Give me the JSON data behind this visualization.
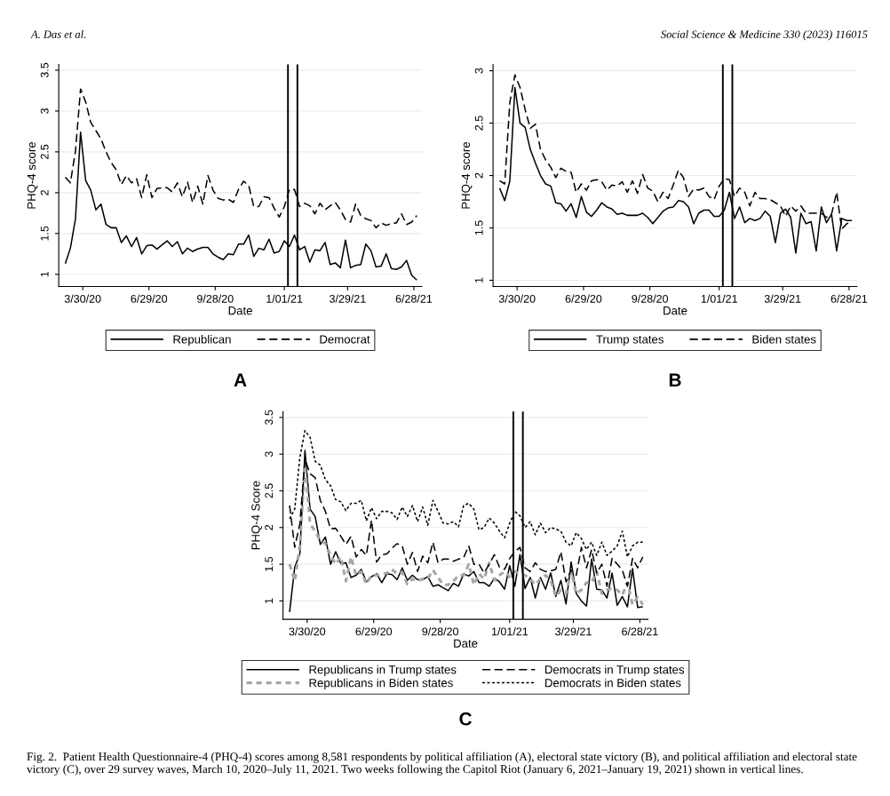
{
  "chart_data": [
    {
      "type": "line",
      "xlabel": "Date",
      "ylabel": "PHQ-4 score",
      "x": [
        "2020-03-06",
        "2020-03-13",
        "2020-03-20",
        "2020-03-27",
        "2020-04-03",
        "2020-04-10",
        "2020-04-17",
        "2020-04-24",
        "2020-05-01",
        "2020-05-08",
        "2020-05-15",
        "2020-05-22",
        "2020-05-29",
        "2020-06-05",
        "2020-06-12",
        "2020-06-19",
        "2020-06-26",
        "2020-07-03",
        "2020-07-10",
        "2020-07-17",
        "2020-07-24",
        "2020-07-31",
        "2020-08-07",
        "2020-08-14",
        "2020-08-21",
        "2020-08-28",
        "2020-09-04",
        "2020-09-11",
        "2020-09-18",
        "2020-09-25",
        "2020-10-02",
        "2020-10-09",
        "2020-10-16",
        "2020-10-23",
        "2020-10-30",
        "2020-11-06",
        "2020-11-13",
        "2020-11-20",
        "2020-11-27",
        "2020-12-04",
        "2020-12-11",
        "2020-12-18",
        "2020-12-25",
        "2021-01-01",
        "2021-01-08",
        "2021-01-15",
        "2021-01-22",
        "2021-01-29",
        "2021-02-05",
        "2021-02-12",
        "2021-02-19",
        "2021-02-26",
        "2021-03-05",
        "2021-03-12",
        "2021-03-19",
        "2021-03-26",
        "2021-04-02",
        "2021-04-09",
        "2021-04-16",
        "2021-04-23",
        "2021-04-30",
        "2021-05-07",
        "2021-05-14",
        "2021-05-21",
        "2021-05-28",
        "2021-06-04",
        "2021-06-11",
        "2021-06-18",
        "2021-06-25",
        "2021-07-02"
      ],
      "series": [
        {
          "name": "Republican",
          "color": "#000000",
          "line_style": "solid",
          "values": [
            1.13,
            1.32,
            1.68,
            2.74,
            2.15,
            2.03,
            1.79,
            1.86,
            1.61,
            1.57,
            1.57,
            1.39,
            1.47,
            1.34,
            1.45,
            1.25,
            1.35,
            1.36,
            1.31,
            1.36,
            1.41,
            1.34,
            1.4,
            1.25,
            1.32,
            1.28,
            1.31,
            1.33,
            1.33,
            1.25,
            1.21,
            1.18,
            1.25,
            1.24,
            1.37,
            1.37,
            1.48,
            1.22,
            1.32,
            1.3,
            1.43,
            1.26,
            1.28,
            1.41,
            1.34,
            1.48,
            1.3,
            1.34,
            1.15,
            1.3,
            1.29,
            1.39,
            1.12,
            1.14,
            1.08,
            1.42,
            1.08,
            1.11,
            1.12,
            1.37,
            1.29,
            1.09,
            1.1,
            1.25,
            1.07,
            1.06,
            1.09,
            1.17,
            0.99,
            0.93
          ]
        },
        {
          "name": "Democrat",
          "color": "#000000",
          "line_style": "dashed",
          "values": [
            2.19,
            2.12,
            2.51,
            3.27,
            3.11,
            2.86,
            2.76,
            2.66,
            2.5,
            2.37,
            2.28,
            2.1,
            2.21,
            2.12,
            2.17,
            1.94,
            2.22,
            1.94,
            2.05,
            2.06,
            2.06,
            2.01,
            2.12,
            1.95,
            2.13,
            1.88,
            2.08,
            1.86,
            2.21,
            2.03,
            1.93,
            1.91,
            1.92,
            1.88,
            2.04,
            2.14,
            2.09,
            1.83,
            1.83,
            1.95,
            1.94,
            1.81,
            1.7,
            1.83,
            2.04,
            2.04,
            1.83,
            1.87,
            1.84,
            1.74,
            1.87,
            1.79,
            1.84,
            1.88,
            1.79,
            1.67,
            1.64,
            1.86,
            1.72,
            1.68,
            1.66,
            1.57,
            1.63,
            1.6,
            1.62,
            1.63,
            1.74,
            1.61,
            1.64,
            1.72
          ]
        }
      ],
      "xlim": [
        "2020-02-26",
        "2021-07-09"
      ],
      "ylim": [
        0.85,
        3.57
      ],
      "xticks": [
        {
          "value": "2020-03-30",
          "label": "3/30/20"
        },
        {
          "value": "2020-06-29",
          "label": "6/29/20"
        },
        {
          "value": "2020-09-28",
          "label": "9/28/20"
        },
        {
          "value": "2021-01-01",
          "label": "1/01/21"
        },
        {
          "value": "2021-03-29",
          "label": "3/29/21"
        },
        {
          "value": "2021-06-28",
          "label": "6/28/21"
        }
      ],
      "yticks": [
        1,
        1.5,
        2,
        2.5,
        3,
        3.5
      ],
      "grid": "y",
      "legend": "bottom",
      "ref_lines": [
        {
          "axis": "x",
          "value": "2021-01-06",
          "color": "#000000"
        },
        {
          "axis": "x",
          "value": "2021-01-19",
          "color": "#000000"
        }
      ],
      "annotations": [
        "A",
        "A. Das et al."
      ]
    },
    {
      "type": "line",
      "xlabel": "Date",
      "ylabel": "PHQ-4 score",
      "x": [
        "2020-03-06",
        "2020-03-13",
        "2020-03-20",
        "2020-03-27",
        "2020-04-03",
        "2020-04-10",
        "2020-04-17",
        "2020-04-24",
        "2020-05-01",
        "2020-05-08",
        "2020-05-15",
        "2020-05-22",
        "2020-05-29",
        "2020-06-05",
        "2020-06-12",
        "2020-06-19",
        "2020-06-26",
        "2020-07-03",
        "2020-07-10",
        "2020-07-17",
        "2020-07-24",
        "2020-07-31",
        "2020-08-07",
        "2020-08-14",
        "2020-08-21",
        "2020-08-28",
        "2020-09-04",
        "2020-09-11",
        "2020-09-18",
        "2020-09-25",
        "2020-10-02",
        "2020-10-09",
        "2020-10-16",
        "2020-10-23",
        "2020-10-30",
        "2020-11-06",
        "2020-11-13",
        "2020-11-20",
        "2020-11-27",
        "2020-12-04",
        "2020-12-11",
        "2020-12-18",
        "2020-12-25",
        "2021-01-01",
        "2021-01-08",
        "2021-01-15",
        "2021-01-22",
        "2021-01-29",
        "2021-02-05",
        "2021-02-12",
        "2021-02-19",
        "2021-02-26",
        "2021-03-05",
        "2021-03-12",
        "2021-03-19",
        "2021-03-26",
        "2021-04-02",
        "2021-04-09",
        "2021-04-16",
        "2021-04-23",
        "2021-04-30",
        "2021-05-07",
        "2021-05-14",
        "2021-05-21",
        "2021-05-28",
        "2021-06-04",
        "2021-06-11",
        "2021-06-18",
        "2021-06-25",
        "2021-07-02"
      ],
      "series": [
        {
          "name": "Trump states",
          "color": "#000000",
          "line_style": "solid",
          "values": [
            1.88,
            1.76,
            1.95,
            2.84,
            2.5,
            2.46,
            2.25,
            2.12,
            2.0,
            1.92,
            1.9,
            1.74,
            1.73,
            1.66,
            1.73,
            1.6,
            1.8,
            1.65,
            1.61,
            1.67,
            1.74,
            1.7,
            1.68,
            1.63,
            1.64,
            1.62,
            1.62,
            1.62,
            1.64,
            1.6,
            1.54,
            1.6,
            1.66,
            1.69,
            1.7,
            1.76,
            1.75,
            1.7,
            1.54,
            1.64,
            1.67,
            1.67,
            1.61,
            1.61,
            1.67,
            1.84,
            1.59,
            1.7,
            1.55,
            1.59,
            1.57,
            1.59,
            1.66,
            1.61,
            1.36,
            1.64,
            1.68,
            1.6,
            1.26,
            1.64,
            1.54,
            1.56,
            1.28,
            1.7,
            1.55,
            1.63,
            1.28,
            1.59,
            1.57,
            1.57
          ]
        },
        {
          "name": "Biden states",
          "color": "#000000",
          "line_style": "dashed",
          "values": [
            1.95,
            1.92,
            2.7,
            2.96,
            2.84,
            2.63,
            2.45,
            2.49,
            2.25,
            2.15,
            2.08,
            1.98,
            2.07,
            2.04,
            2.03,
            1.84,
            1.92,
            1.86,
            1.95,
            1.96,
            1.94,
            1.86,
            1.91,
            1.9,
            1.94,
            1.84,
            1.95,
            1.83,
            2.01,
            1.88,
            1.85,
            1.75,
            1.84,
            1.78,
            1.91,
            2.05,
            1.98,
            1.8,
            1.87,
            1.86,
            1.88,
            1.8,
            1.77,
            1.9,
            1.97,
            1.96,
            1.8,
            1.88,
            1.84,
            1.71,
            1.84,
            1.78,
            1.78,
            1.77,
            1.74,
            1.71,
            1.61,
            1.71,
            1.66,
            1.71,
            1.64,
            1.64,
            1.64,
            1.64,
            1.6,
            1.63,
            1.84,
            1.49,
            1.54,
            1.56
          ]
        }
      ],
      "xlim": [
        "2020-02-26",
        "2021-07-09"
      ],
      "ylim": [
        0.94,
        3.06
      ],
      "xticks": [
        {
          "value": "2020-03-30",
          "label": "3/30/20"
        },
        {
          "value": "2020-06-29",
          "label": "6/29/20"
        },
        {
          "value": "2020-09-28",
          "label": "9/28/20"
        },
        {
          "value": "2021-01-01",
          "label": "1/01/21"
        },
        {
          "value": "2021-03-29",
          "label": "3/29/21"
        },
        {
          "value": "2021-06-28",
          "label": "6/28/21"
        }
      ],
      "yticks": [
        1,
        1.5,
        2,
        2.5,
        3
      ],
      "grid": "y",
      "legend": "bottom",
      "ref_lines": [
        {
          "axis": "x",
          "value": "2021-01-06",
          "color": "#000000"
        },
        {
          "axis": "x",
          "value": "2021-01-19",
          "color": "#000000"
        }
      ],
      "annotations": [
        "B",
        "Social Science & Medicine 330 (2023) 116015"
      ]
    },
    {
      "type": "line",
      "xlabel": "Date",
      "ylabel": "PHQ-4 Score",
      "x": [
        "2020-03-06",
        "2020-03-13",
        "2020-03-20",
        "2020-03-27",
        "2020-04-03",
        "2020-04-10",
        "2020-04-17",
        "2020-04-24",
        "2020-05-01",
        "2020-05-08",
        "2020-05-15",
        "2020-05-22",
        "2020-05-29",
        "2020-06-05",
        "2020-06-12",
        "2020-06-19",
        "2020-06-26",
        "2020-07-03",
        "2020-07-10",
        "2020-07-17",
        "2020-07-24",
        "2020-07-31",
        "2020-08-07",
        "2020-08-14",
        "2020-08-21",
        "2020-08-28",
        "2020-09-04",
        "2020-09-11",
        "2020-09-18",
        "2020-09-25",
        "2020-10-02",
        "2020-10-09",
        "2020-10-16",
        "2020-10-23",
        "2020-10-30",
        "2020-11-06",
        "2020-11-13",
        "2020-11-20",
        "2020-11-27",
        "2020-12-04",
        "2020-12-11",
        "2020-12-18",
        "2020-12-25",
        "2021-01-01",
        "2021-01-08",
        "2021-01-15",
        "2021-01-22",
        "2021-01-29",
        "2021-02-05",
        "2021-02-12",
        "2021-02-19",
        "2021-02-26",
        "2021-03-05",
        "2021-03-12",
        "2021-03-19",
        "2021-03-26",
        "2021-04-02",
        "2021-04-09",
        "2021-04-16",
        "2021-04-23",
        "2021-04-30",
        "2021-05-07",
        "2021-05-14",
        "2021-05-21",
        "2021-05-28",
        "2021-06-04",
        "2021-06-11",
        "2021-06-18",
        "2021-06-25",
        "2021-07-02"
      ],
      "series": [
        {
          "name": "Republicans in Trump states",
          "color": "#000000",
          "line_style": "solid",
          "values": [
            0.85,
            1.46,
            1.64,
            3.05,
            2.25,
            2.15,
            1.77,
            1.87,
            1.5,
            1.67,
            1.51,
            1.52,
            1.32,
            1.35,
            1.43,
            1.26,
            1.33,
            1.37,
            1.25,
            1.37,
            1.36,
            1.29,
            1.45,
            1.28,
            1.35,
            1.29,
            1.29,
            1.33,
            1.2,
            1.22,
            1.18,
            1.14,
            1.24,
            1.2,
            1.37,
            1.34,
            1.4,
            1.25,
            1.25,
            1.2,
            1.31,
            1.26,
            1.16,
            1.48,
            1.2,
            1.63,
            1.17,
            1.32,
            1.04,
            1.32,
            1.16,
            1.38,
            1.06,
            1.28,
            0.96,
            1.53,
            1.1,
            1.0,
            0.93,
            1.57,
            1.16,
            1.15,
            1.04,
            1.38,
            0.94,
            1.06,
            0.92,
            1.44,
            0.91,
            0.92
          ]
        },
        {
          "name": "Republicans in Biden states",
          "color": "#a6a6a6",
          "line_style": "dotted",
          "values": [
            1.5,
            1.27,
            1.75,
            2.85,
            2.05,
            1.95,
            1.82,
            1.78,
            1.62,
            1.5,
            1.6,
            1.27,
            1.6,
            1.35,
            1.4,
            1.23,
            1.35,
            1.35,
            1.36,
            1.38,
            1.43,
            1.37,
            1.39,
            1.23,
            1.3,
            1.27,
            1.3,
            1.3,
            1.42,
            1.32,
            1.22,
            1.22,
            1.27,
            1.35,
            1.35,
            1.5,
            1.22,
            1.37,
            1.3,
            1.52,
            1.28,
            1.35,
            1.4,
            1.33,
            1.4,
            1.37,
            1.35,
            1.3,
            1.22,
            1.3,
            1.35,
            1.28,
            1.06,
            1.15,
            1.1,
            1.4,
            1.1,
            1.15,
            1.25,
            1.25,
            1.4,
            1.1,
            1.15,
            1.17,
            1.15,
            1.08,
            1.25,
            0.95,
            1.05,
            0.95
          ]
        },
        {
          "name": "Democrats in Trump states",
          "color": "#000000",
          "line_style": "dashed",
          "values": [
            2.3,
            1.73,
            2.05,
            2.93,
            2.73,
            2.68,
            2.37,
            2.22,
            1.98,
            1.99,
            1.88,
            1.77,
            1.88,
            1.6,
            1.7,
            1.62,
            2.1,
            1.53,
            1.63,
            1.64,
            1.72,
            1.78,
            1.75,
            1.5,
            1.66,
            1.4,
            1.61,
            1.52,
            1.8,
            1.52,
            1.57,
            1.57,
            1.54,
            1.57,
            1.59,
            1.75,
            1.5,
            1.5,
            1.38,
            1.5,
            1.63,
            1.46,
            1.43,
            1.58,
            1.67,
            1.73,
            1.45,
            1.4,
            1.52,
            1.43,
            1.4,
            1.41,
            1.43,
            1.67,
            1.26,
            1.42,
            1.35,
            1.73,
            1.45,
            1.7,
            1.38,
            1.5,
            1.2,
            1.58,
            1.5,
            1.42,
            1.2,
            1.58,
            1.45,
            1.6
          ]
        },
        {
          "name": "Democrats in Biden states",
          "color": "#000000",
          "line_style": "dotted",
          "values": [
            2.12,
            2.25,
            2.95,
            3.32,
            3.23,
            2.9,
            2.85,
            2.65,
            2.57,
            2.38,
            2.35,
            2.23,
            2.33,
            2.33,
            2.37,
            2.09,
            2.27,
            2.12,
            2.22,
            2.22,
            2.2,
            2.11,
            2.28,
            2.15,
            2.3,
            2.08,
            2.28,
            2.03,
            2.37,
            2.22,
            2.06,
            2.05,
            2.08,
            2.01,
            2.3,
            2.33,
            2.25,
            1.97,
            2.0,
            2.13,
            2.06,
            1.95,
            1.86,
            2.06,
            2.22,
            2.16,
            2.0,
            2.08,
            1.9,
            2.06,
            1.93,
            2.0,
            1.98,
            1.95,
            1.8,
            1.75,
            1.93,
            1.85,
            1.7,
            1.8,
            1.62,
            1.8,
            1.62,
            1.68,
            1.75,
            1.95,
            1.6,
            1.75,
            1.8,
            1.8
          ]
        }
      ],
      "xlim": [
        "2020-02-26",
        "2021-07-09"
      ],
      "ylim": [
        0.75,
        3.58
      ],
      "xticks": [
        {
          "value": "2020-03-30",
          "label": "3/30/20"
        },
        {
          "value": "2020-06-29",
          "label": "6/29/20"
        },
        {
          "value": "2020-09-28",
          "label": "9/28/20"
        },
        {
          "value": "2021-01-01",
          "label": "1/01/21"
        },
        {
          "value": "2021-03-29",
          "label": "3/29/21"
        },
        {
          "value": "2021-06-28",
          "label": "6/28/21"
        }
      ],
      "yticks": [
        1,
        1.5,
        2,
        2.5,
        3,
        3.5
      ],
      "grid": "y",
      "legend": "bottom",
      "ref_lines": [
        {
          "axis": "x",
          "value": "2021-01-06",
          "color": "#000000"
        },
        {
          "axis": "x",
          "value": "2021-01-19",
          "color": "#000000"
        }
      ],
      "annotations": [
        "C",
        "Fig. 2.  Patient Health Questionnaire-4 (PHQ-4) scores among 8,581 respondents by political affiliation (A), electoral state victory (B), and political affiliation and electoral state victory (C), over 29 survey waves, March 10, 2020–July 11, 2021. Two weeks following the Capitol Riot (January 6, 2021–January 19, 2021) shown in vertical lines."
      ]
    }
  ]
}
